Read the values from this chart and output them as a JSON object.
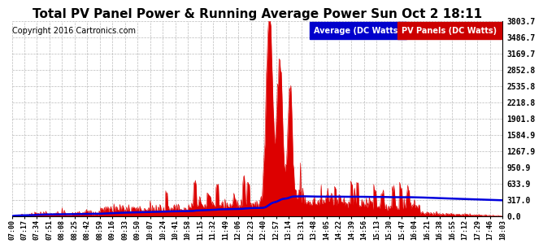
{
  "title": "Total PV Panel Power & Running Average Power Sun Oct 2 18:11",
  "copyright": "Copyright 2016 Cartronics.com",
  "ylabel_right_ticks": [
    0.0,
    317.0,
    633.9,
    950.9,
    1267.9,
    1584.9,
    1901.8,
    2218.8,
    2535.8,
    2852.8,
    3169.7,
    3486.7,
    3803.7
  ],
  "ymax": 3803.7,
  "legend_avg_label": "Average (DC Watts)",
  "legend_pv_label": "PV Panels (DC Watts)",
  "legend_avg_bg": "#0000cc",
  "legend_pv_bg": "#cc0000",
  "background_color": "#ffffff",
  "grid_color": "#aaaaaa",
  "pv_fill_color": "#dd0000",
  "avg_line_color": "#0000dd",
  "title_fontsize": 11,
  "copyright_fontsize": 7,
  "tick_label_fontsize": 6,
  "ytick_fontsize": 7,
  "tick_labels": [
    "07:00",
    "07:17",
    "07:34",
    "07:51",
    "08:08",
    "08:25",
    "08:42",
    "08:59",
    "09:16",
    "09:33",
    "09:50",
    "10:07",
    "10:24",
    "10:41",
    "10:58",
    "11:15",
    "11:32",
    "11:49",
    "12:06",
    "12:23",
    "12:40",
    "12:57",
    "13:14",
    "13:31",
    "13:48",
    "14:05",
    "14:22",
    "14:39",
    "14:56",
    "15:13",
    "15:30",
    "15:47",
    "16:04",
    "16:21",
    "16:38",
    "16:55",
    "17:12",
    "17:29",
    "17:46",
    "18:03"
  ]
}
